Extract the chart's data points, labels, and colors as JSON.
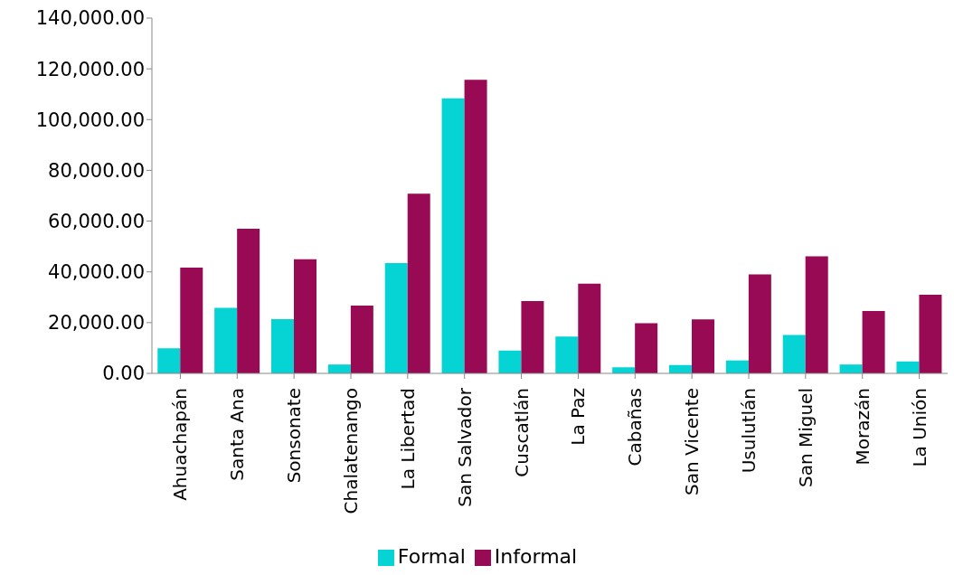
{
  "chart_data": {
    "type": "bar",
    "categories": [
      "Ahuachapán",
      "Santa Ana",
      "Sonsonate",
      "Chalatenango",
      "La Libertad",
      "San Salvador",
      "Cuscatlán",
      "La Paz",
      "Cabañas",
      "San Vicente",
      "Usulutlán",
      "San Miguel",
      "Morazán",
      "La Unión"
    ],
    "series": [
      {
        "name": "Formal",
        "color": "#06d3d3",
        "values": [
          9900,
          25800,
          21400,
          3500,
          43500,
          108400,
          9000,
          14500,
          2400,
          3300,
          5100,
          15100,
          3500,
          4700
        ]
      },
      {
        "name": "Informal",
        "color": "#990a55",
        "values": [
          41700,
          57000,
          45000,
          26700,
          70800,
          115700,
          28500,
          35400,
          19800,
          21300,
          39000,
          46100,
          24600,
          31000
        ]
      }
    ],
    "ylim": [
      0,
      140000
    ],
    "yticks": [
      {
        "value": 0,
        "label": "0.00"
      },
      {
        "value": 20000,
        "label": "20,000.00"
      },
      {
        "value": 40000,
        "label": "40,000.00"
      },
      {
        "value": 60000,
        "label": "60,000.00"
      },
      {
        "value": 80000,
        "label": "80,000.00"
      },
      {
        "value": 100000,
        "label": "100,000.00"
      },
      {
        "value": 120000,
        "label": "120,000.00"
      },
      {
        "value": 140000,
        "label": "140,000.00"
      }
    ],
    "grid": false,
    "legend": "bottom"
  }
}
